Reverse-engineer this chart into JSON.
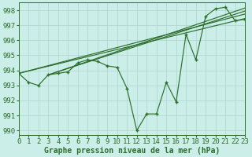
{
  "background_color": "#cceee8",
  "grid_color": "#aad4ce",
  "line_color": "#2d6e2d",
  "marker_color": "#2d6e2d",
  "xlabel": "Graphe pression niveau de la mer (hPa)",
  "xlabel_fontsize": 7,
  "ylabel_fontsize": 6.5,
  "tick_fontsize": 6.5,
  "xlim": [
    0,
    23
  ],
  "ylim": [
    989.7,
    998.5
  ],
  "yticks": [
    990,
    991,
    992,
    993,
    994,
    995,
    996,
    997,
    998
  ],
  "xticks": [
    0,
    1,
    2,
    3,
    4,
    5,
    6,
    7,
    8,
    9,
    10,
    11,
    12,
    13,
    14,
    15,
    16,
    17,
    18,
    19,
    20,
    21,
    22,
    23
  ],
  "zigzag": [
    993.8,
    993.2,
    993.0,
    993.7,
    993.8,
    993.9,
    994.5,
    994.7,
    994.6,
    994.3,
    994.2,
    992.8,
    990.0,
    991.1,
    991.1,
    993.2,
    991.9,
    996.4,
    994.7,
    997.6,
    998.1,
    998.2,
    997.3,
    997.4
  ],
  "straight_lines": [
    {
      "x0": 0,
      "y0": 993.8,
      "x1": 23,
      "y1": 997.45
    },
    {
      "x0": 0,
      "y0": 993.8,
      "x1": 23,
      "y1": 997.75
    },
    {
      "x0": 3,
      "y0": 993.7,
      "x1": 23,
      "y1": 997.95
    },
    {
      "x0": 3,
      "y0": 993.7,
      "x1": 23,
      "y1": 998.15
    }
  ]
}
